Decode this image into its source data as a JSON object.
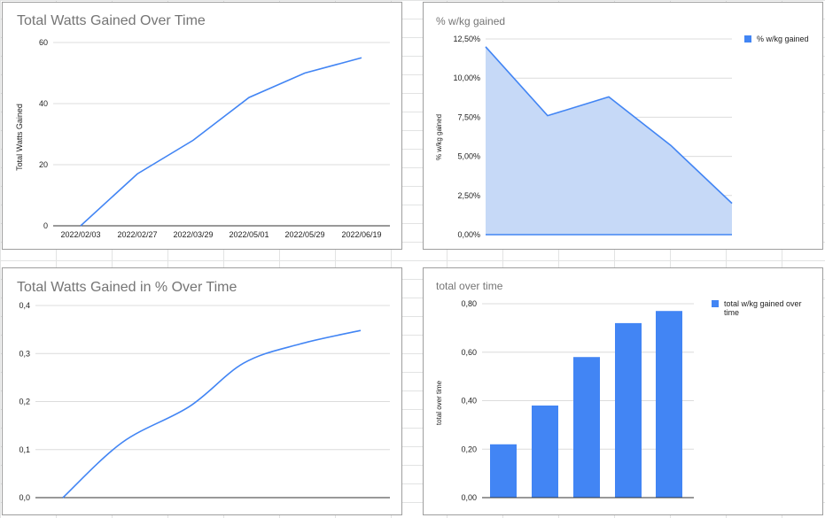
{
  "charts": [
    {
      "title": "Total Watts Gained Over Time",
      "chart_type": "line",
      "ylabel": "Total Watts Gained",
      "ytick_labels": [
        "0",
        "20",
        "40",
        "60"
      ],
      "xtick_labels": [
        "2022/02/03",
        "2022/02/27",
        "2022/03/29",
        "2022/05/01",
        "2022/05/29",
        "2022/06/19"
      ],
      "grid": true,
      "line_color": "#4285f4"
    },
    {
      "title": "% w/kg gained",
      "chart_type": "area",
      "ylabel": "% w/kg gained",
      "ytick_labels": [
        "0,00%",
        "2,50%",
        "5,00%",
        "7,50%",
        "10,00%",
        "12,50%"
      ],
      "legend_label": "% w/kg gained",
      "legend_position": "right",
      "grid": true,
      "line_color": "#4285f4",
      "fill_color": "#c6d9f7"
    },
    {
      "title": "Total  Watts Gained in % Over Time",
      "chart_type": "line",
      "ytick_labels": [
        "0,0",
        "0,1",
        "0,2",
        "0,3",
        "0,4"
      ],
      "grid": true,
      "line_color": "#4285f4"
    },
    {
      "title": "total over time",
      "chart_type": "bar",
      "ylabel": "total over time",
      "ytick_labels": [
        "0,00",
        "0,20",
        "0,40",
        "0,60",
        "0,80"
      ],
      "legend_label": "total  w/kg gained over time",
      "legend_position": "right",
      "grid": true,
      "bar_color": "#4285f4"
    }
  ],
  "chart_data": [
    {
      "type": "line",
      "title": "Total Watts Gained Over Time",
      "ylabel": "Total Watts Gained",
      "xlabel": "",
      "x": [
        "2022/02/03",
        "2022/02/27",
        "2022/03/29",
        "2022/05/01",
        "2022/05/29",
        "2022/06/19"
      ],
      "series": [
        {
          "values": [
            0,
            17,
            28,
            42,
            50,
            55
          ]
        }
      ],
      "ylim": [
        0,
        60
      ],
      "grid": true
    },
    {
      "type": "area",
      "title": "% w/kg gained",
      "ylabel": "% w/kg gained",
      "series": [
        {
          "name": "% w/kg gained",
          "values": [
            12.0,
            7.6,
            8.8,
            5.7,
            2.0
          ]
        }
      ],
      "ylim": [
        0,
        12.5
      ],
      "legend": "right",
      "grid": true
    },
    {
      "type": "line",
      "title": "Total  Watts Gained in % Over Time",
      "series": [
        {
          "values": [
            0,
            0.115,
            0.19,
            0.28,
            0.32,
            0.348
          ]
        }
      ],
      "ylim": [
        0,
        0.4
      ],
      "grid": true
    },
    {
      "type": "bar",
      "title": "total over time",
      "ylabel": "total over time",
      "series": [
        {
          "name": "total  w/kg gained over time",
          "values": [
            0.22,
            0.38,
            0.58,
            0.72,
            0.77
          ]
        }
      ],
      "ylim": [
        0,
        0.8
      ],
      "legend": "right",
      "grid": true
    }
  ]
}
